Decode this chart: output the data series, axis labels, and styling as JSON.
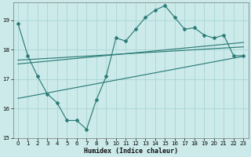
{
  "xlabel": "Humidex (Indice chaleur)",
  "bg_color": "#cceaea",
  "line_color": "#2d7d78",
  "grid_color": "#add8d8",
  "xlim": [
    -0.5,
    23.5
  ],
  "ylim": [
    15.0,
    19.6
  ],
  "yticks": [
    15,
    16,
    17,
    18,
    19
  ],
  "xticks": [
    0,
    1,
    2,
    3,
    4,
    5,
    6,
    7,
    8,
    9,
    10,
    11,
    12,
    13,
    14,
    15,
    16,
    17,
    18,
    19,
    20,
    21,
    22,
    23
  ],
  "main_x": [
    0,
    1,
    2,
    3,
    4,
    5,
    6,
    7,
    8,
    9,
    10,
    11,
    12,
    13,
    14,
    15,
    16,
    17,
    18,
    19,
    20,
    21,
    22,
    23
  ],
  "main_y": [
    18.9,
    17.8,
    17.1,
    16.5,
    16.2,
    15.6,
    15.6,
    15.3,
    16.3,
    17.1,
    18.4,
    18.3,
    18.7,
    19.1,
    19.35,
    19.5,
    19.1,
    18.7,
    18.75,
    18.5,
    18.4,
    18.5,
    17.8,
    17.8
  ],
  "line1_x": [
    0,
    23
  ],
  "line1_y": [
    17.65,
    18.1
  ],
  "line2_x": [
    0,
    23
  ],
  "line2_y": [
    17.52,
    18.25
  ],
  "line3_x": [
    0,
    23
  ],
  "line3_y": [
    16.35,
    17.78
  ]
}
